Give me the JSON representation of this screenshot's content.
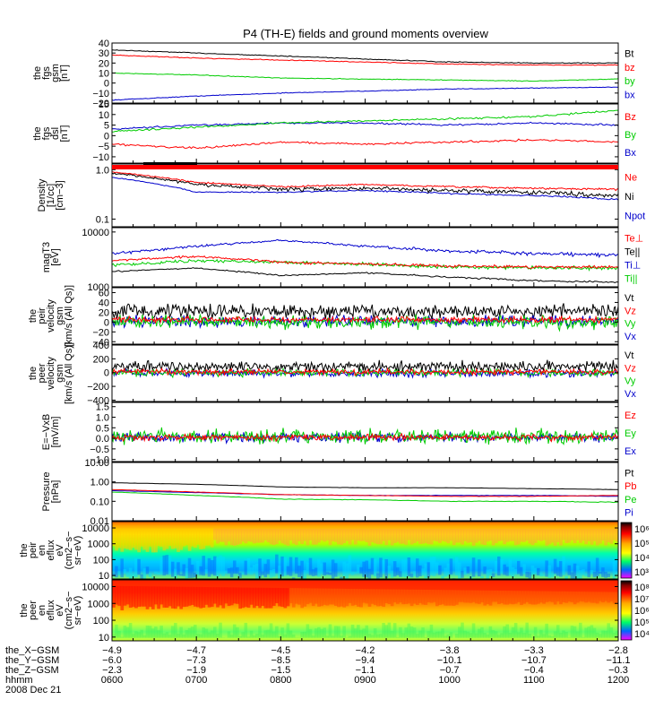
{
  "title": "P4 (TH-E) fields and ground moments overview",
  "colors": {
    "black": "#000000",
    "red": "#ff0000",
    "green": "#00cc00",
    "blue": "#0000cc"
  },
  "panels": [
    {
      "id": "fgs-gsm",
      "ylabel": [
        "the",
        "fgs",
        "gsm",
        "[nT]"
      ],
      "yticks": [
        "40",
        "30",
        "20",
        "10",
        "0",
        "−10",
        "−20"
      ],
      "ymin": -20,
      "ymax": 40,
      "scale": "linear",
      "legend": [
        {
          "text": "Bt",
          "color": "#000000"
        },
        {
          "text": "bz",
          "color": "#ff0000"
        },
        {
          "text": "by",
          "color": "#00cc00"
        },
        {
          "text": "bx",
          "color": "#0000cc"
        }
      ]
    },
    {
      "id": "fgs-dsl",
      "ylabel": [
        "the",
        "fgs",
        "dsl",
        "[nT]"
      ],
      "yticks": [
        "15",
        "10",
        "5",
        "0",
        "−5",
        "−10"
      ],
      "ymin": -13,
      "ymax": 15,
      "scale": "linear",
      "legend": [
        {
          "text": "Bz",
          "color": "#ff0000"
        },
        {
          "text": "By",
          "color": "#00cc00"
        },
        {
          "text": "Bx",
          "color": "#0000cc"
        }
      ]
    },
    {
      "id": "density",
      "ylabel": [
        "Density",
        "[1/cc]",
        "[cm−3]"
      ],
      "yticks": [
        "1.0",
        "0.1"
      ],
      "ymin": 0.07,
      "ymax": 1.3,
      "scale": "log",
      "legend": [
        {
          "text": "Ne",
          "color": "#ff0000"
        },
        {
          "text": "Ni",
          "color": "#000000"
        },
        {
          "text": "Npot",
          "color": "#0000cc"
        }
      ]
    },
    {
      "id": "temperature",
      "ylabel": [
        "magT3",
        "[eV]"
      ],
      "yticks": [
        "10000",
        "1000"
      ],
      "ymin": 1000,
      "ymax": 12000,
      "scale": "log",
      "legend": [
        {
          "text": "Te⊥",
          "color": "#ff0000"
        },
        {
          "text": "Te||",
          "color": "#000000"
        },
        {
          "text": "Ti⊥",
          "color": "#0000cc"
        },
        {
          "text": "Ti||",
          "color": "#00cc00"
        }
      ]
    },
    {
      "id": "peir-velocity",
      "ylabel": [
        "the",
        "peir",
        "velocity",
        "gsm",
        "[km/s (All Qs)]"
      ],
      "yticks": [
        "60",
        "40",
        "20",
        "0",
        "−20",
        "−40"
      ],
      "ymin": -45,
      "ymax": 70,
      "scale": "linear",
      "legend": [
        {
          "text": "Vt",
          "color": "#000000"
        },
        {
          "text": "Vz",
          "color": "#ff0000"
        },
        {
          "text": "Vy",
          "color": "#00cc00"
        },
        {
          "text": "Vx",
          "color": "#0000cc"
        }
      ]
    },
    {
      "id": "peer-velocity",
      "ylabel": [
        "the",
        "peer",
        "velocity",
        "gsm",
        "[km/s (All Qs)]"
      ],
      "yticks": [
        "400",
        "200",
        "0",
        "−200",
        "−400"
      ],
      "ymin": -420,
      "ymax": 400,
      "scale": "linear",
      "legend": [
        {
          "text": "Vt",
          "color": "#000000"
        },
        {
          "text": "Vz",
          "color": "#ff0000"
        },
        {
          "text": "Vy",
          "color": "#00cc00"
        },
        {
          "text": "Vx",
          "color": "#0000cc"
        }
      ]
    },
    {
      "id": "efield",
      "ylabel": [
        "E=−VxB",
        "[mV/m]"
      ],
      "yticks": [
        "1.5",
        "1.0",
        "0.5",
        "0.0",
        "−0.5",
        "−1.0"
      ],
      "ymin": -1.1,
      "ymax": 1.7,
      "scale": "linear",
      "legend": [
        {
          "text": "Ez",
          "color": "#ff0000"
        },
        {
          "text": "Ey",
          "color": "#00cc00"
        },
        {
          "text": "Ex",
          "color": "#0000cc"
        }
      ]
    },
    {
      "id": "pressure",
      "ylabel": [
        "Pressure",
        "[nPa]"
      ],
      "yticks": [
        "10.00",
        "1.00",
        "0.10",
        "0.01"
      ],
      "ymin": 0.01,
      "ymax": 10,
      "scale": "log",
      "legend": [
        {
          "text": "Pt",
          "color": "#000000"
        },
        {
          "text": "Pb",
          "color": "#ff0000"
        },
        {
          "text": "Pe",
          "color": "#00cc00"
        },
        {
          "text": "Pi",
          "color": "#0000cc"
        }
      ]
    },
    {
      "id": "peir-spectrogram",
      "ylabel": [
        "the",
        "peir",
        "en",
        "eflux",
        "eV",
        "(cm2−s−",
        "sr−eV)"
      ],
      "yticks": [
        "10000",
        "1000",
        "100",
        "10"
      ],
      "ymin": 6,
      "ymax": 25000,
      "scale": "log",
      "colorbar": [
        "10⁶",
        "10⁵",
        "10⁴",
        "10³"
      ]
    },
    {
      "id": "peer-spectrogram",
      "ylabel": [
        "the",
        "peer",
        "en",
        "eflux",
        "eV",
        "(cm2−s−",
        "sr−eV)"
      ],
      "yticks": [
        "10000",
        "1000",
        "100",
        "10"
      ],
      "ymin": 6,
      "ymax": 25000,
      "scale": "log",
      "colorbar": [
        "10⁸",
        "10⁷",
        "10⁶",
        "10⁵",
        "10⁴"
      ]
    }
  ],
  "footer": {
    "rows": [
      {
        "label": "the_X−GSM",
        "values": [
          "−4.9",
          "−4.7",
          "−4.5",
          "−4.2",
          "−3.8",
          "−3.3",
          "−2.8"
        ]
      },
      {
        "label": "the_Y−GSM",
        "values": [
          "−6.0",
          "−7.3",
          "−8.5",
          "−9.4",
          "−10.1",
          "−10.7",
          "−11.1"
        ]
      },
      {
        "label": "the_Z−GSM",
        "values": [
          "−2.3",
          "−1.9",
          "−1.5",
          "−1.1",
          "−0.7",
          "−0.4",
          "−0.3"
        ]
      },
      {
        "label": "hhmm",
        "values": [
          "0600",
          "0700",
          "0800",
          "0900",
          "1000",
          "1100",
          "1200"
        ]
      }
    ],
    "date": "2008 Dec 21"
  },
  "chart_data": {
    "type": "line",
    "title": "P4 (TH-E) fields and ground moments overview",
    "x": [
      "0600",
      "0700",
      "0800",
      "0900",
      "1000",
      "1100",
      "1200"
    ],
    "series": [
      {
        "name": "Bt",
        "values": [
          33,
          30,
          27,
          24,
          21,
          20,
          20
        ]
      },
      {
        "name": "bz",
        "values": [
          28,
          25,
          23,
          21,
          19,
          18,
          18
        ]
      },
      {
        "name": "by",
        "values": [
          10,
          8,
          5,
          4,
          3,
          2,
          4
        ]
      },
      {
        "name": "bx",
        "values": [
          -17,
          -13,
          -10,
          -8,
          -6,
          -5,
          -4
        ]
      },
      {
        "name": "Bz",
        "values": [
          -4,
          -6,
          -3,
          -4,
          -3,
          -2,
          -3
        ]
      },
      {
        "name": "By",
        "values": [
          2,
          4,
          6,
          7,
          8,
          9,
          12
        ]
      },
      {
        "name": "Bx",
        "values": [
          3,
          5,
          6,
          6,
          5,
          6,
          5
        ]
      },
      {
        "name": "Ne",
        "values": [
          0.9,
          0.55,
          0.45,
          0.5,
          0.45,
          0.42,
          0.4
        ]
      },
      {
        "name": "Ni",
        "values": [
          0.85,
          0.5,
          0.4,
          0.42,
          0.38,
          0.35,
          0.3
        ]
      },
      {
        "name": "Npot",
        "values": [
          0.7,
          0.35,
          0.35,
          0.38,
          0.33,
          0.3,
          0.25
        ]
      },
      {
        "name": "Te⊥",
        "values": [
          3000,
          3600,
          2800,
          2600,
          2400,
          2300,
          2300
        ]
      },
      {
        "name": "Te||",
        "values": [
          1900,
          2200,
          1600,
          1800,
          1500,
          1300,
          1200
        ]
      },
      {
        "name": "Ti⊥",
        "values": [
          4000,
          5500,
          7000,
          5500,
          4500,
          4000,
          3800
        ]
      },
      {
        "name": "Ti||",
        "values": [
          2500,
          3000,
          2800,
          2600,
          2300,
          2200,
          2200
        ]
      },
      {
        "name": "Pt",
        "values": [
          0.9,
          0.75,
          0.55,
          0.5,
          0.5,
          0.45,
          0.4
        ]
      },
      {
        "name": "Pb",
        "values": [
          0.4,
          0.3,
          0.22,
          0.2,
          0.18,
          0.18,
          0.2
        ]
      },
      {
        "name": "Pe",
        "values": [
          0.3,
          0.2,
          0.13,
          0.12,
          0.1,
          0.1,
          0.09
        ]
      },
      {
        "name": "Pi",
        "values": [
          0.35,
          0.28,
          0.22,
          0.2,
          0.2,
          0.2,
          0.18
        ]
      }
    ]
  }
}
